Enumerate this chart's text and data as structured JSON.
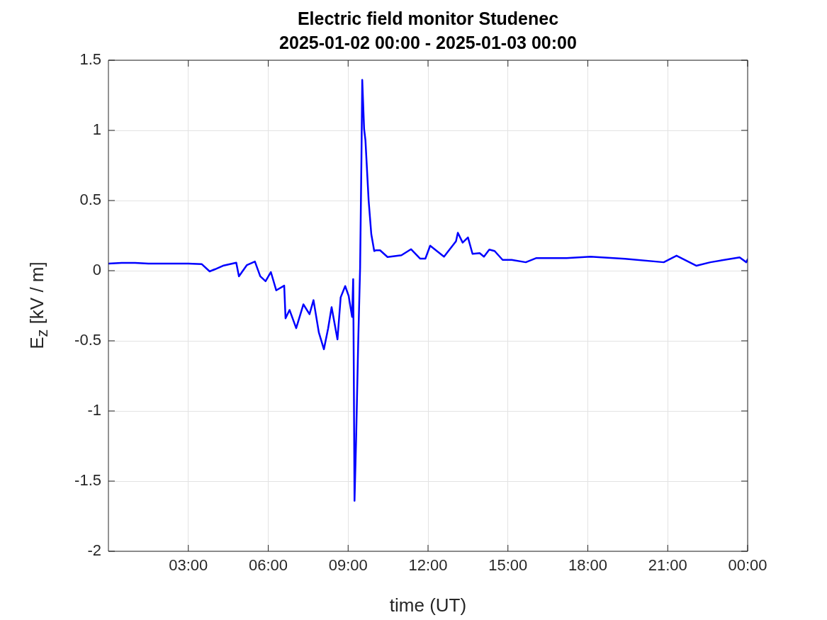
{
  "chart_data": {
    "type": "line",
    "title": "Electric field monitor Studenec",
    "subtitle": "2025-01-02 00:00 - 2025-01-03 00:00",
    "xlabel": "time (UT)",
    "ylabel": "E$_{z}$ [kV / m]",
    "xlim": [
      0,
      24
    ],
    "xticks": [
      {
        "value": 3,
        "label": "03:00"
      },
      {
        "value": 6,
        "label": "06:00"
      },
      {
        "value": 9,
        "label": "09:00"
      },
      {
        "value": 12,
        "label": "12:00"
      },
      {
        "value": 15,
        "label": "15:00"
      },
      {
        "value": 18,
        "label": "18:00"
      },
      {
        "value": 21,
        "label": "21:00"
      },
      {
        "value": 24,
        "label": "00:00"
      }
    ],
    "ylim": [
      -2,
      1.5
    ],
    "yticks": [
      -2,
      -1.5,
      -1,
      -0.5,
      0,
      0.5,
      1,
      1.5
    ],
    "grid": true,
    "legend": false,
    "marker": "none",
    "line_style": "solid",
    "series": [
      {
        "color": "#0000ff",
        "x": [
          0,
          0.5,
          1,
          1.5,
          2,
          2.5,
          3,
          3.5,
          3.8,
          4,
          4.3,
          4.8,
          4.9,
          5.2,
          5.5,
          5.7,
          5.9,
          6.1,
          6.3,
          6.6,
          6.65,
          6.8,
          7.05,
          7.32,
          7.55,
          7.7,
          7.9,
          8.09,
          8.25,
          8.38,
          8.6,
          8.72,
          8.89,
          9.02,
          9.15,
          9.19,
          9.21,
          9.24,
          9.3,
          9.38,
          9.45,
          9.5,
          9.53,
          9.6,
          9.65,
          9.77,
          9.87,
          9.98,
          10.03,
          10.2,
          10.48,
          11.0,
          11.36,
          11.7,
          11.9,
          12.08,
          12.6,
          13.05,
          13.12,
          13.3,
          13.5,
          13.67,
          13.94,
          14.1,
          14.3,
          14.5,
          14.8,
          15.14,
          15.67,
          16.07,
          17.2,
          18.1,
          19.4,
          20.85,
          21.33,
          22.08,
          22.6,
          23.7,
          23.95,
          24
        ],
        "values": [
          0.05,
          0.055,
          0.055,
          0.05,
          0.05,
          0.05,
          0.05,
          0.047,
          -0.005,
          0.01,
          0.035,
          0.057,
          -0.04,
          0.04,
          0.065,
          -0.04,
          -0.075,
          -0.01,
          -0.14,
          -0.107,
          -0.34,
          -0.28,
          -0.41,
          -0.24,
          -0.31,
          -0.21,
          -0.44,
          -0.56,
          -0.41,
          -0.26,
          -0.49,
          -0.19,
          -0.11,
          -0.18,
          -0.33,
          -0.06,
          -0.63,
          -1.64,
          -1.2,
          -0.5,
          0.02,
          0.8,
          1.36,
          1.01,
          0.93,
          0.5,
          0.26,
          0.14,
          0.145,
          0.145,
          0.097,
          0.11,
          0.153,
          0.086,
          0.086,
          0.178,
          0.1,
          0.21,
          0.27,
          0.2,
          0.237,
          0.12,
          0.125,
          0.1,
          0.15,
          0.14,
          0.077,
          0.077,
          0.06,
          0.09,
          0.09,
          0.1,
          0.085,
          0.06,
          0.107,
          0.035,
          0.06,
          0.095,
          0.06,
          0.08
        ]
      }
    ]
  }
}
